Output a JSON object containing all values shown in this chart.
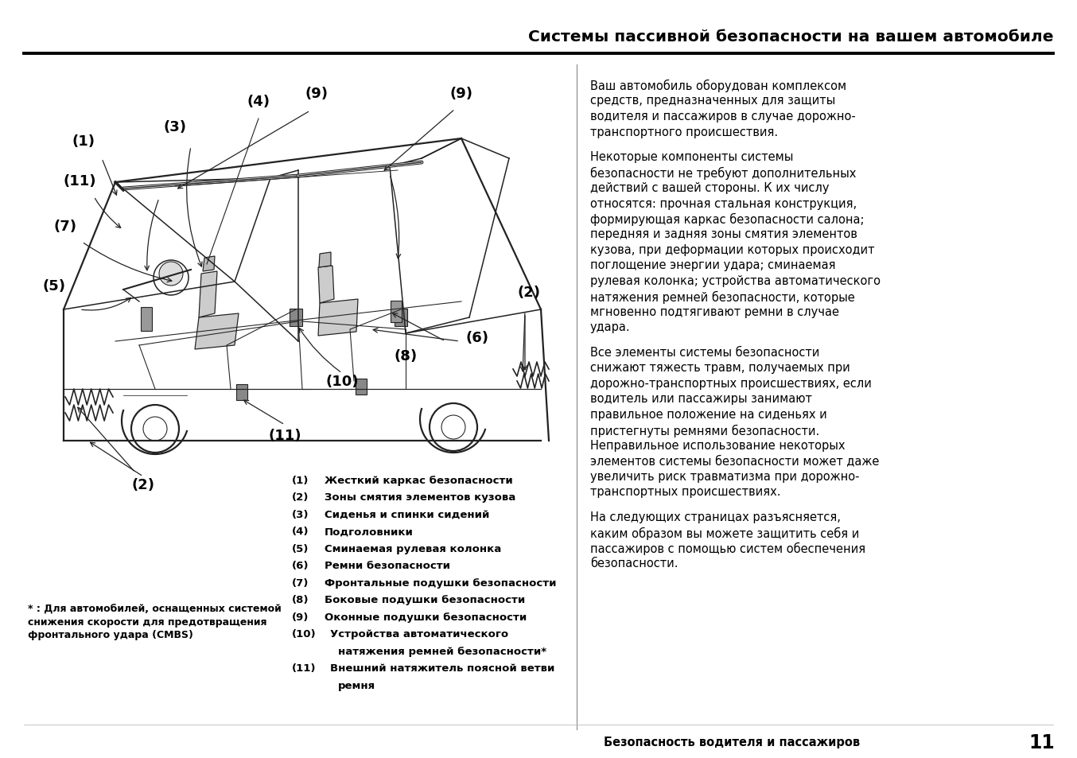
{
  "title": "Системы пассивной безопасности на вашем автомобиле",
  "page_footer_left": "Безопасность водителя и пассажиров",
  "page_number": "11",
  "footnote_line1": "* : Для автомобилей, оснащенных системой",
  "footnote_line2": "снижения скорости для предотвращения",
  "footnote_line3": "фронтального удара (CMBS)",
  "legend_items": [
    [
      "(1)",
      "Жесткий каркас безопасности"
    ],
    [
      "(2)",
      "Зоны смятия элементов кузова"
    ],
    [
      "(3)",
      "Сиденья и спинки сидений"
    ],
    [
      "(4)",
      "Подголовники"
    ],
    [
      "(5)",
      "Сминаемая рулевая колонка"
    ],
    [
      "(6)",
      "Ремни безопасности"
    ],
    [
      "(7)",
      "Фронтальные подушки безопасности"
    ],
    [
      "(8)",
      "Боковые подушки безопасности"
    ],
    [
      "(9)",
      "Оконные подушки безопасности"
    ],
    [
      "(10)",
      "Устройства автоматического"
    ],
    [
      "",
      "натяжения ремней безопасности*"
    ],
    [
      "(11)",
      "Внешний натяжитель поясной ветви"
    ],
    [
      "",
      "ремня"
    ]
  ],
  "right_paragraphs": [
    "Ваш автомобиль оборудован комплексом\nсредств, предназначенных для защиты\nводителя и пассажиров в случае дорожно-\nтранспортного происшествия.",
    "Некоторые компоненты системы\nбезопасности не требуют дополнительных\nдействий с вашей стороны. К их числу\nотносятся: прочная стальная конструкция,\nформирующая каркас безопасности салона;\nпередняя и задняя зоны смятия элементов\nкузова, при деформации которых происходит\nпоглощение энергии удара; сминаемая\nрулевая колонка; устройства автоматического\nнатяжения ремней безопасности, которые\nмгновенно подтягивают ремни в случае\nудара.",
    "Все элементы системы безопасности\nснижают тяжесть травм, получаемых при\nдорожно-транспортных происшествиях, если\nводитель или пассажиры занимают\nправильное положение на сиденьях и\nпристегнуты ремнями безопасности.\nНеправильное использование некоторых\nэлементов системы безопасности может даже\nувеличить риск травматизма при дорожно-\nтранспортных происшествиях.",
    "На следующих страницах разъясняется,\nкаким образом вы можете защитить себя и\nпассажиров с помощью систем обеспечения\nбезопасности."
  ],
  "car_labels": [
    [
      "(1)",
      105,
      178
    ],
    [
      "(3)",
      220,
      160
    ],
    [
      "(4)",
      325,
      128
    ],
    [
      "(9)",
      398,
      118
    ],
    [
      "(9)",
      580,
      118
    ],
    [
      "(11)",
      100,
      228
    ],
    [
      "(7)",
      82,
      285
    ],
    [
      "(5)",
      68,
      360
    ],
    [
      "(2)",
      665,
      368
    ],
    [
      "(6)",
      600,
      425
    ],
    [
      "(8)",
      510,
      448
    ],
    [
      "(10)",
      430,
      480
    ],
    [
      "(11)",
      358,
      548
    ],
    [
      "(2)",
      180,
      610
    ]
  ],
  "bg_color": "#ffffff",
  "text_color": "#000000",
  "title_color": "#000000",
  "divider_color": "#000000"
}
